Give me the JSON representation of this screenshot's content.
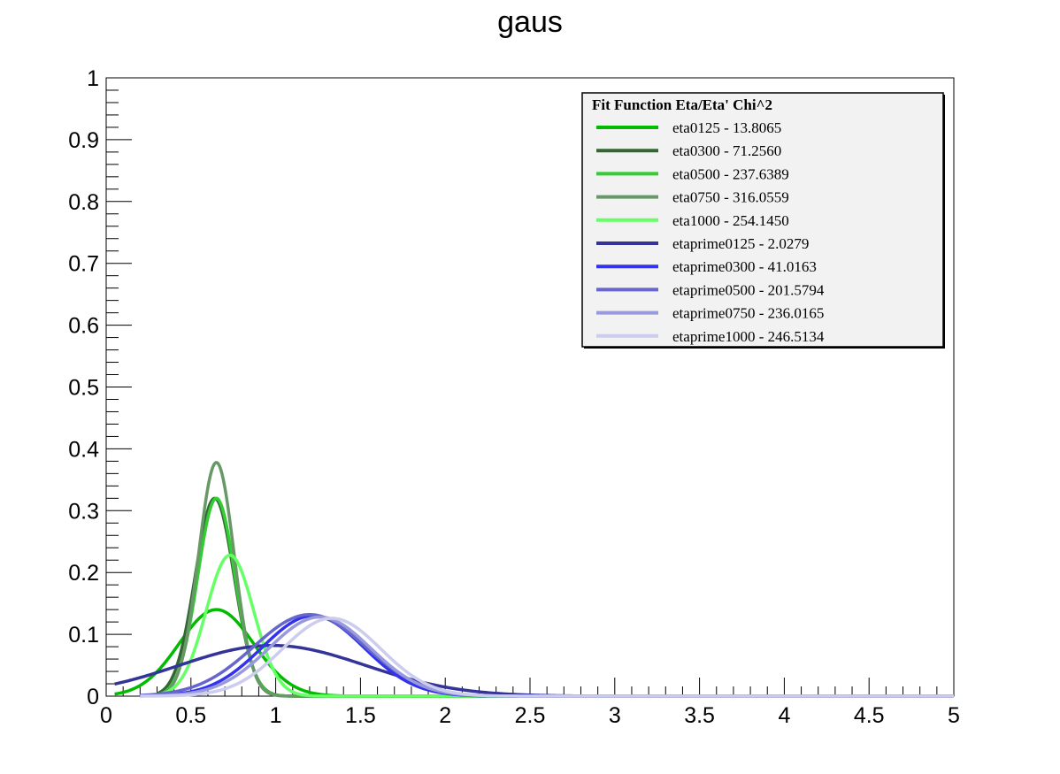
{
  "chart_data": {
    "type": "line",
    "title": "gaus",
    "xlabel": "",
    "ylabel": "",
    "xlim": [
      0,
      5
    ],
    "ylim": [
      0,
      1
    ],
    "x_ticks": [
      "0",
      "0.5",
      "1",
      "1.5",
      "2",
      "2.5",
      "3",
      "3.5",
      "4",
      "4.5",
      "5"
    ],
    "y_ticks": [
      "0",
      "0.1",
      "0.2",
      "0.3",
      "0.4",
      "0.5",
      "0.6",
      "0.7",
      "0.8",
      "0.9",
      "1"
    ],
    "grid": false,
    "legend": {
      "title": "Fit Function Eta/Eta' Chi^2",
      "placement": "top-right",
      "entries": [
        "eta0125 - 13.8065",
        "eta0300 - 71.2560",
        "eta0500 - 237.6389",
        "eta0750 - 316.0559",
        "eta1000 - 254.1450",
        "etaprime0125 - 2.0279",
        "etaprime0300 - 41.0163",
        "etaprime0500 - 201.5794",
        "etaprime0750 - 236.0165",
        "etaprime1000 - 246.5134"
      ]
    },
    "series": [
      {
        "name": "eta0125 - 13.8065",
        "color": "#00bb00",
        "amplitude": 0.14,
        "mean": 0.65,
        "sigma": 0.22,
        "x_range": [
          0.05,
          5
        ]
      },
      {
        "name": "eta0300 - 71.2560",
        "color": "#336633",
        "amplitude": 0.32,
        "mean": 0.64,
        "sigma": 0.115,
        "x_range": [
          0.3,
          5
        ]
      },
      {
        "name": "eta0500 - 237.6389",
        "color": "#33cc33",
        "amplitude": 0.32,
        "mean": 0.65,
        "sigma": 0.11,
        "x_range": [
          0.3,
          5
        ]
      },
      {
        "name": "eta0750 - 316.0559",
        "color": "#669966",
        "amplitude": 0.378,
        "mean": 0.65,
        "sigma": 0.105,
        "x_range": [
          0.3,
          5
        ]
      },
      {
        "name": "eta1000 - 254.1450",
        "color": "#66ff66",
        "amplitude": 0.228,
        "mean": 0.73,
        "sigma": 0.14,
        "x_range": [
          0.3,
          5
        ]
      },
      {
        "name": "etaprime0125 - 2.0279",
        "color": "#333399",
        "amplitude": 0.082,
        "mean": 0.98,
        "sigma": 0.55,
        "x_range": [
          0.05,
          5
        ]
      },
      {
        "name": "etaprime0300 - 41.0163",
        "color": "#3333ee",
        "amplitude": 0.13,
        "mean": 1.22,
        "sigma": 0.3,
        "x_range": [
          0.2,
          5
        ]
      },
      {
        "name": "etaprime0500 - 201.5794",
        "color": "#6666cc",
        "amplitude": 0.132,
        "mean": 1.2,
        "sigma": 0.33,
        "x_range": [
          0.2,
          5
        ]
      },
      {
        "name": "etaprime0750 - 236.0165",
        "color": "#9999dd",
        "amplitude": 0.128,
        "mean": 1.26,
        "sigma": 0.3,
        "x_range": [
          0.2,
          5
        ]
      },
      {
        "name": "etaprime1000 - 246.5134",
        "color": "#ccccee",
        "amplitude": 0.126,
        "mean": 1.33,
        "sigma": 0.29,
        "x_range": [
          0.2,
          5
        ]
      }
    ]
  }
}
